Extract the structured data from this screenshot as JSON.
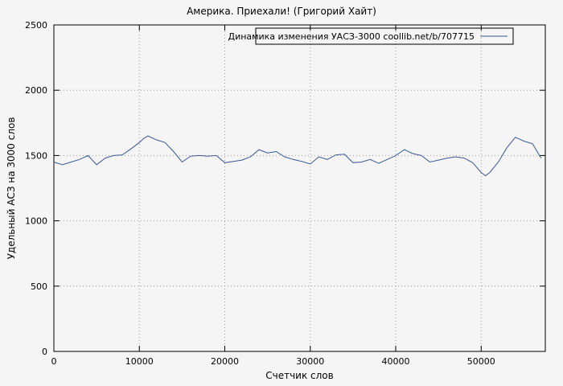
{
  "chart_data": {
    "type": "line",
    "title": "Америка. Приехали! (Григорий Хайт)",
    "xlabel": "Счетчик слов",
    "ylabel": "Удельный АСЗ на 3000 слов",
    "xlim": [
      0,
      57500
    ],
    "ylim": [
      0,
      2500
    ],
    "xticks": [
      [
        0,
        "0"
      ],
      [
        10000,
        "10000"
      ],
      [
        20000,
        "20000"
      ],
      [
        30000,
        "30000"
      ],
      [
        40000,
        "40000"
      ],
      [
        50000,
        "50000"
      ]
    ],
    "yticks": [
      [
        0,
        "0"
      ],
      [
        500,
        "500"
      ],
      [
        1000,
        "1000"
      ],
      [
        1500,
        "1500"
      ],
      [
        2000,
        "2000"
      ],
      [
        2500,
        "2500"
      ]
    ],
    "grid": true,
    "grid_color": "#9a9a9a",
    "border_color": "#000000",
    "background_color": "#f5f5f5",
    "legend_position": "top-center-inside",
    "series": [
      {
        "name": "Динамика изменения УАСЗ-3000 coollib.net/b/707715",
        "color": "#3a5894",
        "points": [
          [
            0,
            1450
          ],
          [
            1000,
            1430
          ],
          [
            2000,
            1450
          ],
          [
            3000,
            1470
          ],
          [
            4000,
            1500
          ],
          [
            5000,
            1430
          ],
          [
            6000,
            1480
          ],
          [
            7000,
            1500
          ],
          [
            8000,
            1505
          ],
          [
            9000,
            1550
          ],
          [
            10000,
            1600
          ],
          [
            10500,
            1630
          ],
          [
            11000,
            1650
          ],
          [
            12000,
            1620
          ],
          [
            13000,
            1600
          ],
          [
            14000,
            1530
          ],
          [
            15000,
            1450
          ],
          [
            16000,
            1495
          ],
          [
            17000,
            1500
          ],
          [
            18000,
            1495
          ],
          [
            19000,
            1500
          ],
          [
            20000,
            1445
          ],
          [
            21000,
            1455
          ],
          [
            22000,
            1465
          ],
          [
            23000,
            1490
          ],
          [
            24000,
            1545
          ],
          [
            25000,
            1520
          ],
          [
            26000,
            1530
          ],
          [
            27000,
            1490
          ],
          [
            28000,
            1470
          ],
          [
            29000,
            1455
          ],
          [
            30000,
            1435
          ],
          [
            31000,
            1490
          ],
          [
            32000,
            1470
          ],
          [
            33000,
            1505
          ],
          [
            34000,
            1510
          ],
          [
            35000,
            1445
          ],
          [
            36000,
            1450
          ],
          [
            37000,
            1470
          ],
          [
            38000,
            1440
          ],
          [
            39000,
            1470
          ],
          [
            40000,
            1500
          ],
          [
            41000,
            1545
          ],
          [
            42000,
            1515
          ],
          [
            43000,
            1500
          ],
          [
            44000,
            1450
          ],
          [
            45000,
            1465
          ],
          [
            46000,
            1480
          ],
          [
            47000,
            1490
          ],
          [
            48000,
            1480
          ],
          [
            49000,
            1445
          ],
          [
            50000,
            1370
          ],
          [
            50500,
            1345
          ],
          [
            51000,
            1370
          ],
          [
            52000,
            1450
          ],
          [
            53000,
            1560
          ],
          [
            54000,
            1640
          ],
          [
            55000,
            1610
          ],
          [
            56000,
            1590
          ],
          [
            57000,
            1480
          ]
        ]
      }
    ]
  }
}
